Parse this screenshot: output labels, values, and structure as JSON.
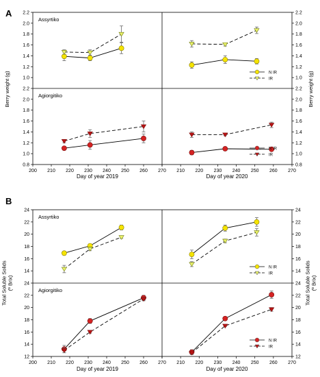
{
  "panel_labels": [
    "A",
    "B"
  ],
  "colors": {
    "nir_marker": "#f5e400",
    "ir_marker_A": "#e8f06a",
    "nir_red": "#d42323",
    "ir_red": "#b81414",
    "error": "#666666"
  },
  "chart_data": [
    {
      "type": "line",
      "panel": "A",
      "xlim": [
        200,
        270
      ],
      "x_ticks": [
        200,
        210,
        220,
        230,
        240,
        250,
        260,
        270
      ],
      "ylabel_left": "Berry weight (g)",
      "ylabel_right": "Berry weight (g)",
      "y_ticks": [
        0.8,
        1.0,
        1.2,
        1.4,
        1.6,
        1.8,
        2.0,
        2.2
      ],
      "subplots": [
        {
          "id": "A-assyrtiko-2019",
          "cultivar": "Assyrtiko",
          "year": "2019",
          "row": 0,
          "col": 0,
          "ylim": [
            0.8,
            2.2
          ],
          "legend": null,
          "series": [
            {
              "name": "N IR",
              "x": [
                217,
                231,
                248
              ],
              "y": [
                1.39,
                1.36,
                1.54
              ],
              "err": [
                0.08,
                0.05,
                0.1
              ]
            },
            {
              "name": "IR",
              "x": [
                217,
                231,
                248
              ],
              "y": [
                1.47,
                1.46,
                1.8
              ],
              "err": [
                0.04,
                0.05,
                0.15
              ]
            }
          ]
        },
        {
          "id": "A-assyrtiko-2020",
          "cultivar": "",
          "year": "2020",
          "row": 0,
          "col": 1,
          "ylim": [
            0.8,
            2.2
          ],
          "legend": [
            "N IR",
            "IR"
          ],
          "series": [
            {
              "name": "N IR",
              "x": [
                216,
                234,
                251
              ],
              "y": [
                1.23,
                1.33,
                1.3
              ],
              "err": [
                0.06,
                0.07,
                0.05
              ]
            },
            {
              "name": "IR",
              "x": [
                216,
                234,
                251
              ],
              "y": [
                1.62,
                1.61,
                1.87
              ],
              "err": [
                0.06,
                0.03,
                0.06
              ]
            }
          ]
        },
        {
          "id": "A-agiorgitiko-2019",
          "cultivar": "Agiorgitiko",
          "year": "2019",
          "row": 1,
          "col": 0,
          "ylim": [
            0.8,
            2.2
          ],
          "legend": null,
          "series": [
            {
              "name": "N IR",
              "x": [
                217,
                231,
                260
              ],
              "y": [
                1.1,
                1.16,
                1.28
              ],
              "err": [
                0.03,
                0.08,
                0.08
              ]
            },
            {
              "name": "IR",
              "x": [
                217,
                231,
                260
              ],
              "y": [
                1.23,
                1.37,
                1.5
              ],
              "err": [
                0.03,
                0.07,
                0.1
              ]
            }
          ]
        },
        {
          "id": "A-agiorgitiko-2020",
          "cultivar": "",
          "year": "2020",
          "row": 1,
          "col": 1,
          "ylim": [
            0.8,
            2.2
          ],
          "legend": [
            "N IR",
            "IR"
          ],
          "series": [
            {
              "name": "N IR",
              "x": [
                216,
                234,
                259
              ],
              "y": [
                1.02,
                1.09,
                1.08
              ],
              "err": [
                0.04,
                0.02,
                0.02
              ]
            },
            {
              "name": "IR",
              "x": [
                216,
                234,
                259
              ],
              "y": [
                1.35,
                1.35,
                1.53
              ],
              "err": [
                0.05,
                0.02,
                0.05
              ]
            }
          ]
        }
      ],
      "xlabels": [
        "Day of year 2019",
        "Day of year 2020"
      ]
    },
    {
      "type": "line",
      "panel": "B",
      "xlim": [
        200,
        270
      ],
      "x_ticks": [
        200,
        210,
        220,
        230,
        240,
        250,
        260,
        270
      ],
      "ylabel_left": "Total Soluble Solids\n(º Brix)",
      "ylabel_right": "Total Soluble Solids\n(º Brix)",
      "y_ticks": [
        12,
        14,
        16,
        18,
        20,
        22,
        24
      ],
      "subplots": [
        {
          "id": "B-assyrtiko-2019",
          "cultivar": "Assyrtiko",
          "year": "2019",
          "row": 0,
          "col": 0,
          "ylim": [
            12,
            24
          ],
          "legend": null,
          "series": [
            {
              "name": "N IR",
              "x": [
                217,
                231,
                248
              ],
              "y": [
                16.9,
                18.1,
                21.1
              ],
              "err": [
                0.15,
                0.3,
                0.4
              ]
            },
            {
              "name": "IR",
              "x": [
                217,
                231,
                248
              ],
              "y": [
                14.3,
                17.6,
                19.5
              ],
              "err": [
                0.6,
                0.3,
                0.2
              ]
            }
          ]
        },
        {
          "id": "B-assyrtiko-2020",
          "cultivar": "",
          "year": "2020",
          "row": 0,
          "col": 1,
          "ylim": [
            12,
            24
          ],
          "legend": [
            "N IR",
            "IR"
          ],
          "series": [
            {
              "name": "N IR",
              "x": [
                216,
                234,
                251
              ],
              "y": [
                16.7,
                21.0,
                22.0
              ],
              "err": [
                0.7,
                0.5,
                0.7
              ]
            },
            {
              "name": "IR",
              "x": [
                216,
                234,
                251
              ],
              "y": [
                15.1,
                18.9,
                20.3
              ],
              "err": [
                0.4,
                0.3,
                0.6
              ]
            }
          ]
        },
        {
          "id": "B-agiorgitiko-2019",
          "cultivar": "Agiorgitiko",
          "year": "2019",
          "row": 1,
          "col": 0,
          "ylim": [
            12,
            24
          ],
          "legend": null,
          "series": [
            {
              "name": "N IR",
              "x": [
                217,
                231,
                260
              ],
              "y": [
                13.2,
                17.8,
                21.6
              ],
              "err": [
                0.6,
                0.4,
                0.4
              ]
            },
            {
              "name": "IR",
              "x": [
                217,
                231,
                260
              ],
              "y": [
                13.0,
                16.0,
                21.4
              ],
              "err": [
                0.4,
                0.2,
                0.3
              ]
            }
          ]
        },
        {
          "id": "B-agiorgitiko-2020",
          "cultivar": "",
          "year": "2020",
          "row": 1,
          "col": 1,
          "ylim": [
            12,
            24
          ],
          "legend": [
            "N IR",
            "IR"
          ],
          "series": [
            {
              "name": "N IR",
              "x": [
                216,
                234,
                259
              ],
              "y": [
                12.7,
                18.2,
                22.1
              ],
              "err": [
                0.4,
                0.1,
                0.6
              ]
            },
            {
              "name": "IR",
              "x": [
                216,
                234,
                259
              ],
              "y": [
                12.6,
                17.0,
                19.7
              ],
              "err": [
                0.2,
                0.1,
                0.3
              ]
            }
          ]
        }
      ],
      "xlabels": [
        "Day of year 2019",
        "Day of year 2020"
      ]
    }
  ]
}
